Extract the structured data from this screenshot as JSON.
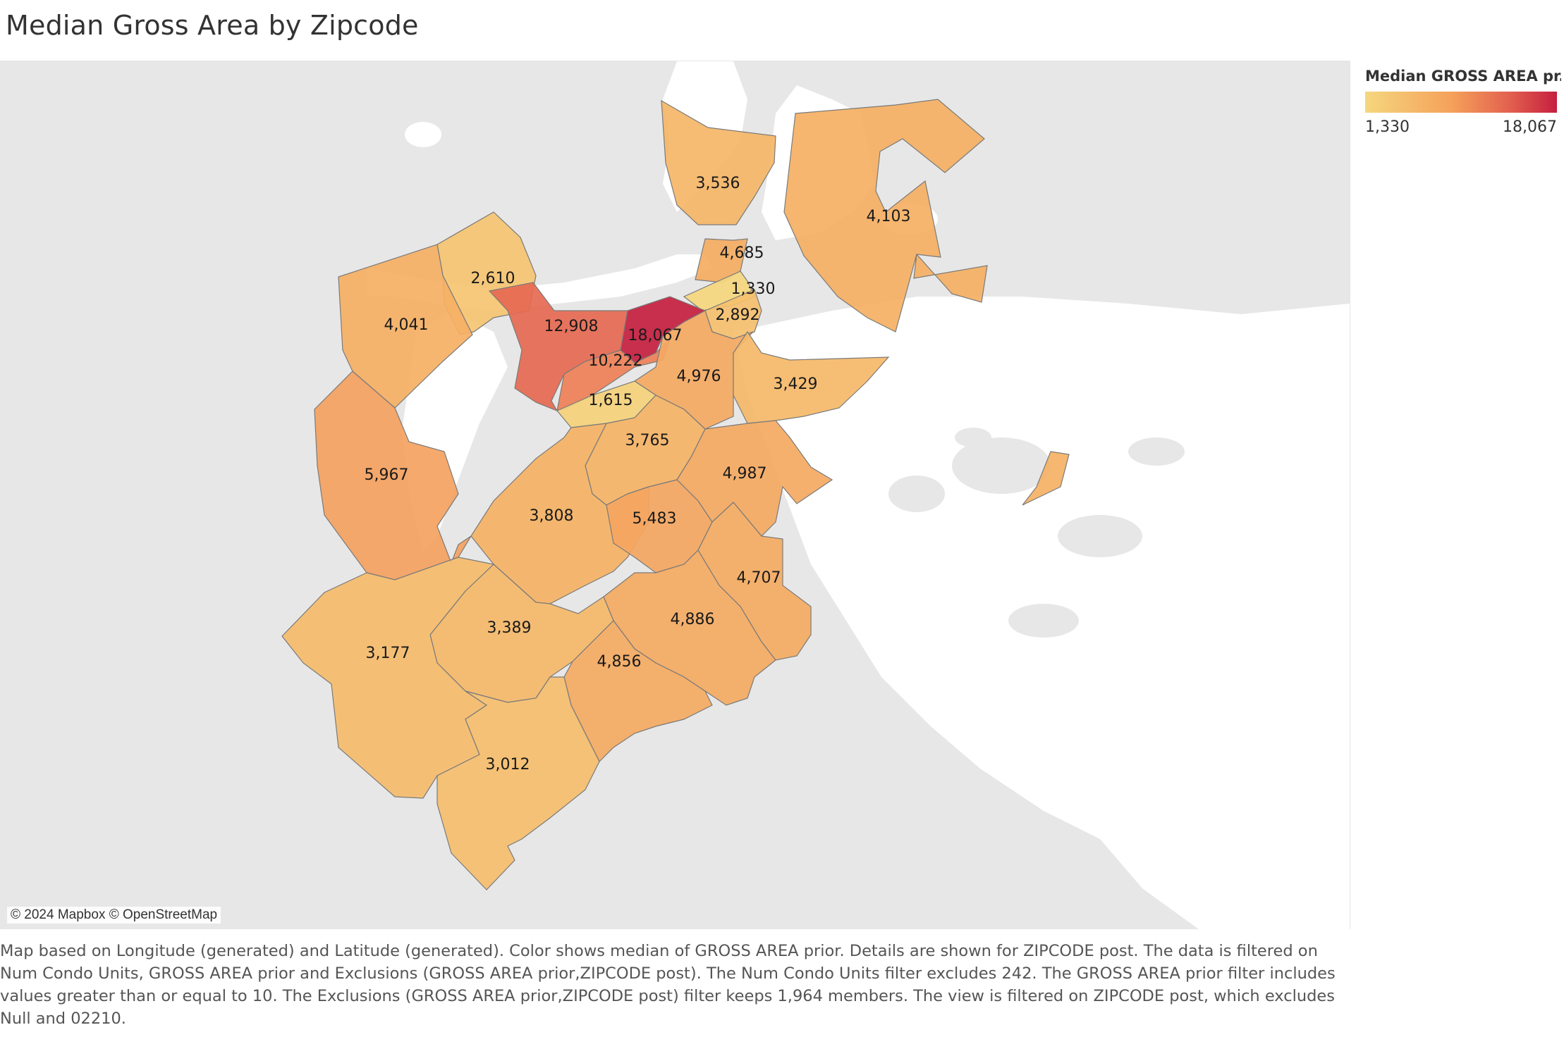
{
  "title": "Median Gross Area by Zipcode",
  "legend": {
    "title": "Median GROSS AREA pr..",
    "min_label": "1,330",
    "max_label": "18,067",
    "min_value": 1330,
    "max_value": 18067,
    "color_low": "#f5d77e",
    "color_high": "#c51f3f"
  },
  "map": {
    "attribution": "© 2024 Mapbox © OpenStreetMap",
    "regions": [
      {
        "id": "z3536",
        "label": "3,536",
        "value": 3536
      },
      {
        "id": "z4103",
        "label": "4,103",
        "value": 4103
      },
      {
        "id": "z4685",
        "label": "4,685",
        "value": 4685
      },
      {
        "id": "z1330",
        "label": "1,330",
        "value": 1330
      },
      {
        "id": "z2610",
        "label": "2,610",
        "value": 2610
      },
      {
        "id": "z4041",
        "label": "4,041",
        "value": 4041
      },
      {
        "id": "z12908",
        "label": "12,908",
        "value": 12908
      },
      {
        "id": "z18067",
        "label": "18,067",
        "value": 18067
      },
      {
        "id": "z2892",
        "label": "2,892",
        "value": 2892
      },
      {
        "id": "z10222",
        "label": "10,222",
        "value": 10222
      },
      {
        "id": "z4976",
        "label": "4,976",
        "value": 4976
      },
      {
        "id": "z3429",
        "label": "3,429",
        "value": 3429
      },
      {
        "id": "z1615",
        "label": "1,615",
        "value": 1615
      },
      {
        "id": "z3765",
        "label": "3,765",
        "value": 3765
      },
      {
        "id": "z5967",
        "label": "5,967",
        "value": 5967
      },
      {
        "id": "z4987",
        "label": "4,987",
        "value": 4987
      },
      {
        "id": "z3808",
        "label": "3,808",
        "value": 3808
      },
      {
        "id": "z5483",
        "label": "5,483",
        "value": 5483
      },
      {
        "id": "z4707",
        "label": "4,707",
        "value": 4707
      },
      {
        "id": "z3389",
        "label": "3,389",
        "value": 3389
      },
      {
        "id": "z4886",
        "label": "4,886",
        "value": 4886
      },
      {
        "id": "z3177",
        "label": "3,177",
        "value": 3177
      },
      {
        "id": "z4856",
        "label": "4,856",
        "value": 4856
      },
      {
        "id": "z3012",
        "label": "3,012",
        "value": 3012
      },
      {
        "id": "zisland",
        "label": "",
        "value": 4000
      }
    ]
  },
  "caption": "Map based on Longitude (generated) and Latitude (generated).  Color shows median of GROSS AREA prior.  Details are shown for ZIPCODE post. The data is filtered on Num Condo Units, GROSS AREA prior and Exclusions (GROSS AREA prior,ZIPCODE post). The Num Condo Units filter excludes 242. The GROSS AREA prior filter includes values greater than or equal to 10. The Exclusions (GROSS AREA prior,ZIPCODE post) filter keeps 1,964 members. The view is filtered on ZIPCODE post, which excludes Null and 02210."
}
